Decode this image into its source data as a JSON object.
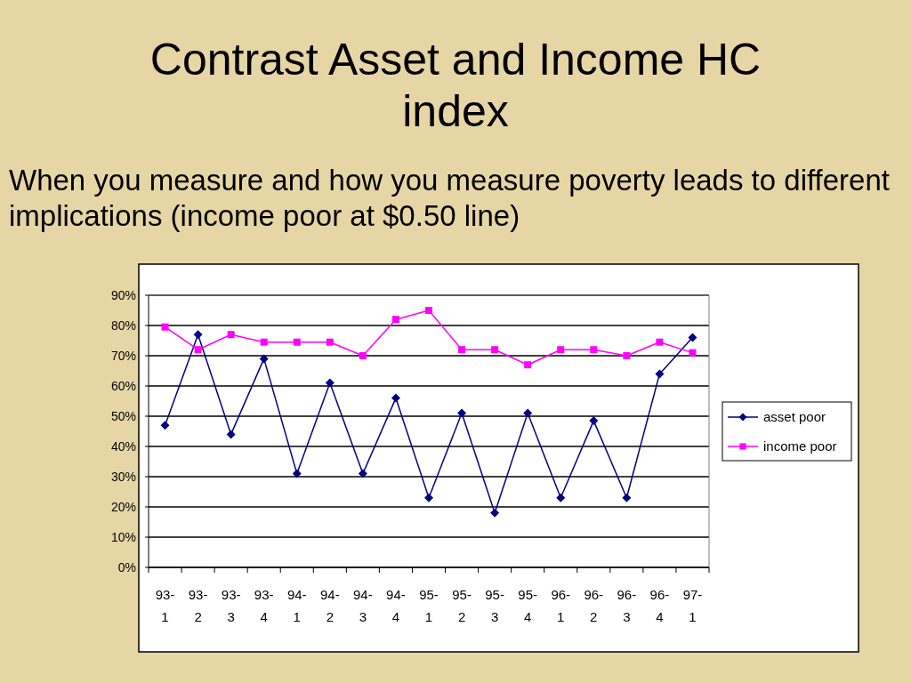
{
  "chart_data": {
    "type": "line",
    "title": "Contrast Asset and Income HC index",
    "subtitle": "When you measure and how you measure poverty leads to different implications (income poor at $0.50 line)",
    "categories": [
      "93-1",
      "93-2",
      "93-3",
      "93-4",
      "94-1",
      "94-2",
      "94-3",
      "94-4",
      "95-1",
      "95-2",
      "95-3",
      "95-4",
      "96-1",
      "96-2",
      "96-3",
      "96-4",
      "97-1"
    ],
    "series": [
      {
        "name": "asset poor",
        "color": "#000080",
        "marker": "diamond",
        "values": [
          47,
          77,
          44,
          69,
          31,
          61,
          31,
          56,
          23,
          51,
          18,
          51,
          23,
          48.5,
          23,
          64,
          76
        ]
      },
      {
        "name": "income poor",
        "color": "#ff00ff",
        "marker": "square",
        "values": [
          79.5,
          72,
          77,
          74.5,
          74.5,
          74.5,
          70,
          82,
          85,
          72,
          72,
          67,
          72,
          72,
          70,
          74.5,
          71
        ]
      }
    ],
    "ylim": [
      0,
      90
    ],
    "yticks": [
      {
        "value": 0,
        "label": "0%"
      },
      {
        "value": 10,
        "label": "10%"
      },
      {
        "value": 20,
        "label": "20%"
      },
      {
        "value": 30,
        "label": "30%"
      },
      {
        "value": 40,
        "label": "40%"
      },
      {
        "value": 50,
        "label": "50%"
      },
      {
        "value": 60,
        "label": "60%"
      },
      {
        "value": 70,
        "label": "70%"
      },
      {
        "value": 80,
        "label": "80%"
      },
      {
        "value": 90,
        "label": "90%"
      }
    ],
    "grid": "y",
    "legend": "right",
    "line_style": "solid"
  }
}
